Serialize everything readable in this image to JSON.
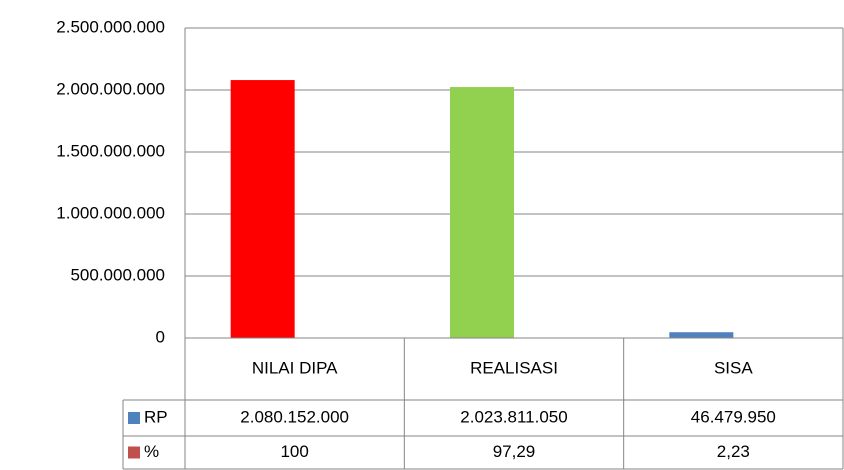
{
  "chart_data": {
    "type": "bar",
    "categories": [
      "NILAI DIPA",
      "REALISASI",
      "SISA"
    ],
    "series": [
      {
        "name": "RP",
        "color": "#4f81bd",
        "colors": [
          "#ff0000",
          "#92d050",
          "#4f81bd"
        ],
        "values": [
          2080152000,
          2023811050,
          46479950
        ],
        "value_labels": [
          "2.080.152.000",
          "2.023.811.050",
          "46.479.950"
        ]
      },
      {
        "name": "%",
        "color": "#c0504d",
        "values": [
          100,
          97.29,
          2.23
        ],
        "value_labels": [
          "100",
          "97,29",
          "2,23"
        ]
      }
    ],
    "ylim": [
      0,
      2500000000
    ],
    "yticks": [
      0,
      {
        "value": 500000000,
        "label": "500.000.000"
      },
      {
        "value": 1000000000,
        "label": "1.000.000.000"
      },
      {
        "value": 1500000000,
        "label": "1.500.000.000"
      },
      {
        "value": 2000000000,
        "label": "2.000.000.000"
      },
      {
        "value": 2500000000,
        "label": "2.500.000.000"
      }
    ],
    "grid": true,
    "data_table": true
  }
}
